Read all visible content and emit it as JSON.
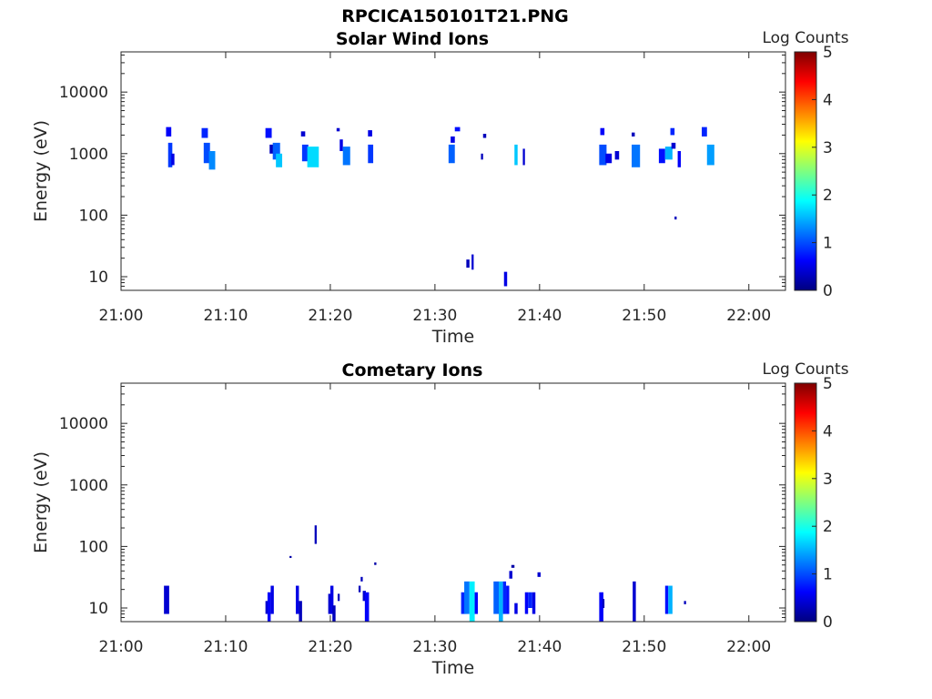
{
  "figure": {
    "title": "RPCICA150101T21.PNG"
  },
  "colormap": {
    "name": "jet",
    "stops": [
      "#00007f",
      "#0000ff",
      "#007fff",
      "#00ffff",
      "#7fff7f",
      "#ffff00",
      "#ff7f00",
      "#ff0000",
      "#7f0000"
    ]
  },
  "chart_data": [
    {
      "type": "heatmap",
      "title": "Solar Wind Ions",
      "xlabel": "Time",
      "ylabel": "Energy (eV)",
      "y_scale": "log",
      "x_ticks": [
        "21:00",
        "21:10",
        "21:20",
        "21:30",
        "21:40",
        "21:50",
        "22:00"
      ],
      "x_tick_values_min": [
        0,
        10,
        20,
        30,
        40,
        50,
        60
      ],
      "xlim_min": [
        0,
        63.5
      ],
      "y_ticks": [
        "10",
        "100",
        "1000",
        "10000"
      ],
      "y_tick_values": [
        10,
        100,
        1000,
        10000
      ],
      "ylim": [
        6,
        45000
      ],
      "colorbar": {
        "label": "Log Counts",
        "ticks": [
          "0",
          "1",
          "2",
          "3",
          "4",
          "5"
        ],
        "range": [
          0,
          5
        ]
      },
      "cells_note": "Each cell: time start (min after 21:00), time end, energy low (eV), energy high (eV), log counts",
      "cells": [
        [
          4.3,
          4.8,
          1900,
          2700,
          0.6
        ],
        [
          4.5,
          4.9,
          600,
          1500,
          0.9
        ],
        [
          4.8,
          5.1,
          650,
          1000,
          0.5
        ],
        [
          7.7,
          8.3,
          1800,
          2600,
          0.8
        ],
        [
          7.9,
          8.5,
          700,
          1500,
          1.0
        ],
        [
          8.4,
          9.0,
          550,
          1100,
          1.3
        ],
        [
          13.8,
          14.4,
          1800,
          2600,
          0.7
        ],
        [
          14.2,
          14.6,
          1000,
          1400,
          0.3
        ],
        [
          14.5,
          15.2,
          800,
          1500,
          1.1
        ],
        [
          14.8,
          15.4,
          600,
          1000,
          1.6
        ],
        [
          17.2,
          17.6,
          1900,
          2300,
          0.4
        ],
        [
          17.3,
          17.9,
          750,
          1400,
          0.9
        ],
        [
          17.8,
          18.9,
          600,
          1300,
          1.7
        ],
        [
          20.6,
          20.9,
          2300,
          2600,
          0.4
        ],
        [
          20.9,
          21.2,
          1100,
          1700,
          0.5
        ],
        [
          21.2,
          21.9,
          650,
          1300,
          1.2
        ],
        [
          23.6,
          24.0,
          1900,
          2400,
          0.5
        ],
        [
          23.6,
          24.1,
          700,
          1400,
          0.9
        ],
        [
          31.5,
          31.9,
          1500,
          1900,
          0.5
        ],
        [
          31.3,
          31.9,
          700,
          1400,
          1.1
        ],
        [
          31.9,
          32.4,
          2300,
          2700,
          0.7
        ],
        [
          34.6,
          34.9,
          1800,
          2100,
          0.3
        ],
        [
          34.4,
          34.6,
          800,
          1000,
          0.3
        ],
        [
          37.6,
          37.9,
          650,
          1400,
          1.6
        ],
        [
          38.4,
          38.6,
          650,
          1200,
          0.4
        ],
        [
          45.8,
          46.2,
          2000,
          2600,
          0.6
        ],
        [
          45.7,
          46.4,
          650,
          1400,
          1.0
        ],
        [
          46.3,
          46.9,
          700,
          1000,
          0.5
        ],
        [
          47.2,
          47.6,
          800,
          1100,
          0.4
        ],
        [
          48.8,
          49.1,
          1900,
          2200,
          0.3
        ],
        [
          48.8,
          49.6,
          600,
          1400,
          1.2
        ],
        [
          51.4,
          52.0,
          700,
          1200,
          0.7
        ],
        [
          52.0,
          52.7,
          800,
          1300,
          1.5
        ],
        [
          52.5,
          52.9,
          2000,
          2600,
          0.8
        ],
        [
          52.6,
          53.0,
          1200,
          1500,
          0.4
        ],
        [
          53.2,
          53.5,
          600,
          1100,
          0.6
        ],
        [
          55.5,
          56.0,
          1900,
          2700,
          0.8
        ],
        [
          56.0,
          56.7,
          650,
          1400,
          1.4
        ],
        [
          52.9,
          53.1,
          85,
          95,
          0.3
        ],
        [
          33.0,
          33.3,
          14,
          19,
          0.3
        ],
        [
          33.5,
          33.7,
          13,
          23,
          0.4
        ],
        [
          36.6,
          36.9,
          7,
          12,
          0.5
        ]
      ]
    },
    {
      "type": "heatmap",
      "title": "Cometary Ions",
      "xlabel": "Time",
      "ylabel": "Energy (eV)",
      "y_scale": "log",
      "x_ticks": [
        "21:00",
        "21:10",
        "21:20",
        "21:30",
        "21:40",
        "21:50",
        "22:00"
      ],
      "x_tick_values_min": [
        0,
        10,
        20,
        30,
        40,
        50,
        60
      ],
      "xlim_min": [
        0,
        63.5
      ],
      "y_ticks": [
        "10",
        "100",
        "1000",
        "10000"
      ],
      "y_tick_values": [
        10,
        100,
        1000,
        10000
      ],
      "ylim": [
        6,
        45000
      ],
      "colorbar": {
        "label": "Log Counts",
        "ticks": [
          "0",
          "1",
          "2",
          "3",
          "4",
          "5"
        ],
        "range": [
          0,
          5
        ]
      },
      "cells_note": "Each cell: time start (min after 21:00), time end, energy low (eV), energy high (eV), log counts",
      "cells": [
        [
          4.1,
          4.6,
          8,
          23,
          0.4
        ],
        [
          13.8,
          14.1,
          8,
          13,
          0.4
        ],
        [
          14.0,
          14.3,
          6,
          18,
          0.6
        ],
        [
          14.3,
          14.6,
          8,
          23,
          0.5
        ],
        [
          16.7,
          17.0,
          8,
          23,
          0.5
        ],
        [
          17.0,
          17.3,
          6,
          13,
          0.3
        ],
        [
          18.5,
          18.7,
          110,
          220,
          0.3
        ],
        [
          19.8,
          20.1,
          8,
          17,
          0.4
        ],
        [
          20.0,
          20.3,
          8,
          23,
          0.5
        ],
        [
          20.2,
          20.5,
          6,
          11,
          0.3
        ],
        [
          20.7,
          20.9,
          13,
          17,
          0.3
        ],
        [
          22.7,
          22.9,
          18,
          23,
          0.3
        ],
        [
          22.9,
          23.1,
          27,
          32,
          0.3
        ],
        [
          23.1,
          23.4,
          13,
          19,
          0.4
        ],
        [
          23.3,
          23.7,
          6,
          18,
          0.6
        ],
        [
          24.2,
          24.4,
          50,
          55,
          0.2
        ],
        [
          16.1,
          16.3,
          65,
          70,
          0.2
        ],
        [
          32.5,
          33.0,
          8,
          18,
          0.8
        ],
        [
          32.8,
          33.3,
          8,
          27,
          1.2
        ],
        [
          33.3,
          33.8,
          6,
          27,
          1.8
        ],
        [
          33.8,
          34.1,
          8,
          18,
          0.6
        ],
        [
          35.6,
          36.1,
          8,
          27,
          1.1
        ],
        [
          36.1,
          36.5,
          6,
          27,
          1.5
        ],
        [
          36.5,
          36.8,
          8,
          27,
          0.8
        ],
        [
          36.8,
          37.1,
          8,
          23,
          0.7
        ],
        [
          37.1,
          37.4,
          30,
          40,
          0.4
        ],
        [
          37.3,
          37.6,
          45,
          50,
          0.2
        ],
        [
          37.6,
          37.9,
          8,
          12,
          0.5
        ],
        [
          38.6,
          38.9,
          8,
          18,
          0.6
        ],
        [
          38.9,
          39.3,
          10,
          18,
          0.8
        ],
        [
          39.3,
          39.6,
          8,
          18,
          0.5
        ],
        [
          39.8,
          40.1,
          32,
          38,
          0.4
        ],
        [
          45.7,
          46.1,
          6,
          18,
          0.6
        ],
        [
          46.0,
          46.2,
          10,
          14,
          0.3
        ],
        [
          48.9,
          49.2,
          6,
          27,
          0.4
        ],
        [
          52.0,
          52.3,
          8,
          23,
          0.7
        ],
        [
          52.3,
          52.7,
          8,
          23,
          1.5
        ],
        [
          53.8,
          54.0,
          11.5,
          13,
          0.3
        ]
      ]
    }
  ]
}
